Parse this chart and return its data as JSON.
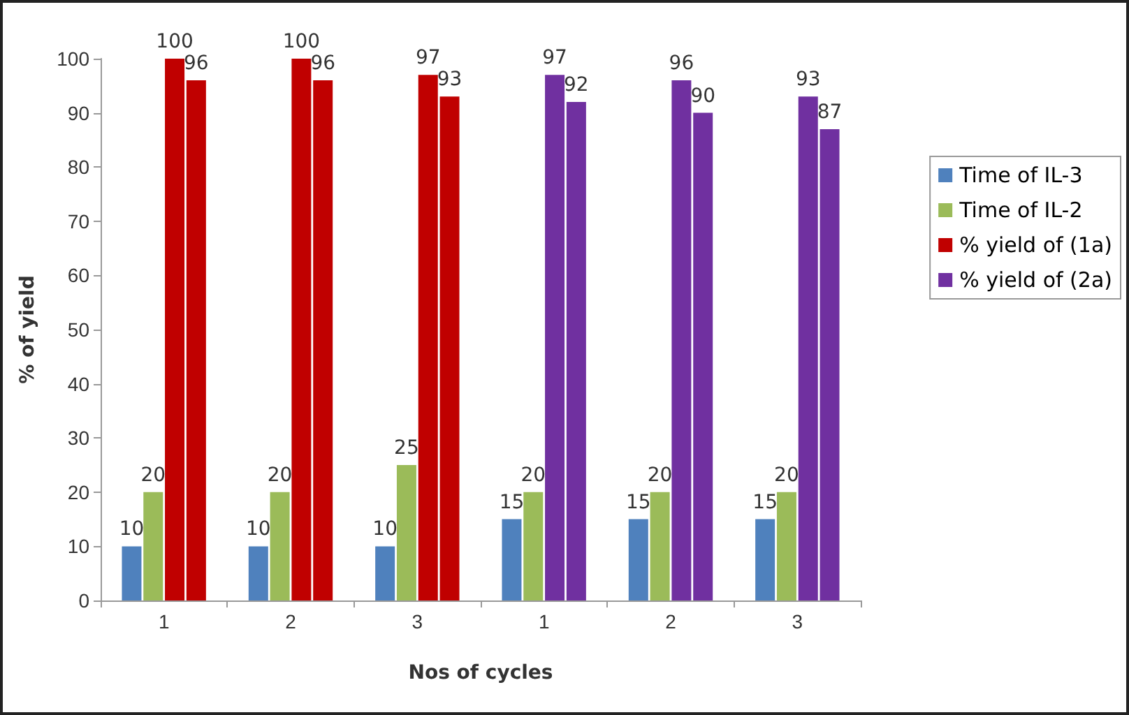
{
  "chart_data": {
    "type": "bar",
    "xlabel": "Nos of cycles",
    "ylabel": "% of yield",
    "categories": [
      "1",
      "2",
      "3",
      "1",
      "2",
      "3"
    ],
    "series": [
      {
        "name": "Time of IL-3",
        "color": "#4f81bd",
        "values": [
          10,
          10,
          10,
          15,
          15,
          15
        ]
      },
      {
        "name": "Time of IL-2",
        "color": "#9bbb59",
        "values": [
          20,
          20,
          25,
          20,
          20,
          20
        ]
      },
      {
        "name": "% yield of (1a)",
        "color": "#c00000",
        "values": [
          100,
          100,
          97,
          null,
          null,
          null
        ]
      },
      {
        "color": "#c00000",
        "values": [
          96,
          96,
          93,
          null,
          null,
          null
        ]
      },
      {
        "name": "% yield of (2a)",
        "color": "#7030a0",
        "values": [
          null,
          null,
          null,
          97,
          96,
          93
        ]
      },
      {
        "color": "#7030a0",
        "values": [
          null,
          null,
          null,
          92,
          90,
          87
        ]
      }
    ],
    "ylim": [
      0,
      100
    ],
    "yticks": [
      0,
      10,
      20,
      30,
      40,
      50,
      60,
      70,
      80,
      90,
      100
    ],
    "grid": false,
    "legend": "right",
    "data_labels": true
  }
}
